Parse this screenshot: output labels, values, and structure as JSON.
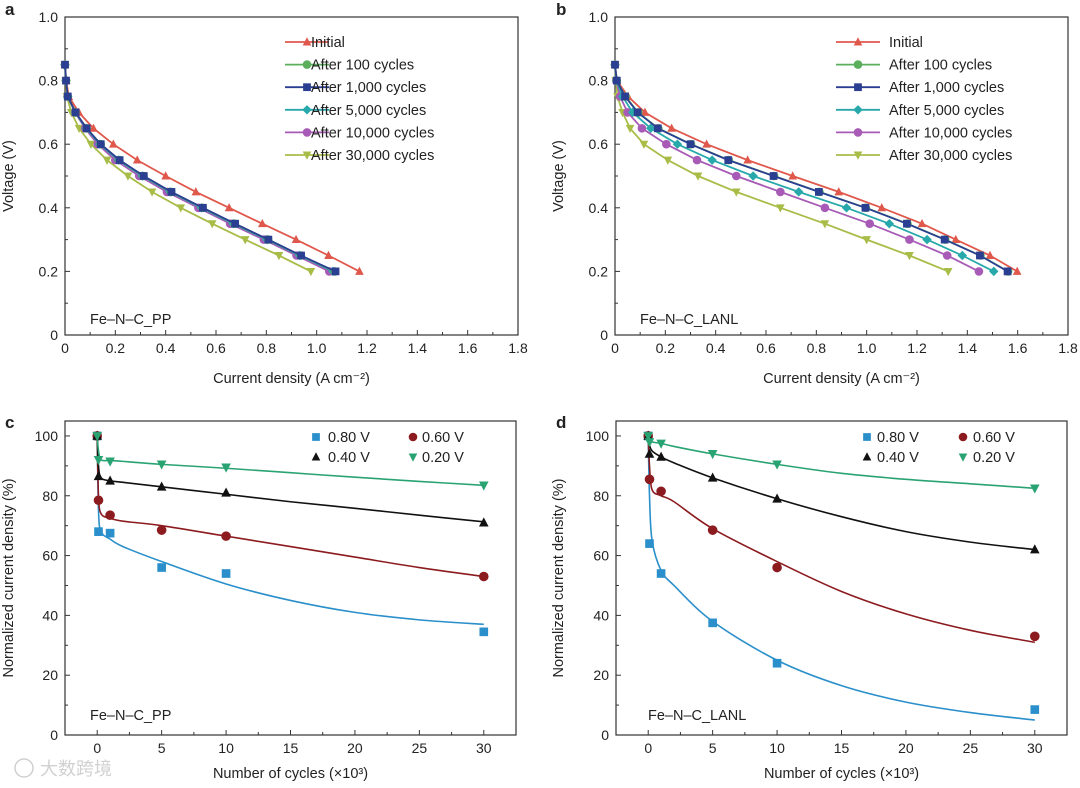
{
  "chart_data": [
    {
      "panel": "a",
      "type": "line",
      "title": "",
      "sample_label": "Fe–N–C_PP",
      "xlabel": "Current density (A cm⁻²)",
      "ylabel": "Voltage (V)",
      "xlim": [
        0,
        1.8
      ],
      "ylim": [
        0,
        1.0
      ],
      "xticks": [
        "0",
        "0.2",
        "0.4",
        "0.6",
        "0.8",
        "1.0",
        "1.2",
        "1.4",
        "1.6",
        "1.8"
      ],
      "yticks": [
        "0",
        "0.2",
        "0.4",
        "0.6",
        "0.8",
        "1.0"
      ],
      "legend_position": "top-right",
      "voltages": [
        0.85,
        0.8,
        0.75,
        0.7,
        0.65,
        0.6,
        0.55,
        0.5,
        0.45,
        0.4,
        0.35,
        0.3,
        0.25,
        0.2
      ],
      "series": [
        {
          "name": "Initial",
          "color": "#e0574b",
          "marker": "triangle-up",
          "current": [
            0,
            0.005,
            0.015,
            0.055,
            0.113,
            0.192,
            0.287,
            0.4,
            0.52,
            0.652,
            0.784,
            0.918,
            1.047,
            1.17
          ]
        },
        {
          "name": "After 100 cycles",
          "color": "#5aae5c",
          "marker": "circle",
          "current": [
            0,
            0.004,
            0.011,
            0.042,
            0.086,
            0.142,
            0.216,
            0.312,
            0.422,
            0.547,
            0.674,
            0.807,
            0.937,
            1.072
          ]
        },
        {
          "name": "After 1,000 cycles",
          "color": "#2b3f92",
          "marker": "square",
          "current": [
            0,
            0.004,
            0.011,
            0.042,
            0.086,
            0.142,
            0.217,
            0.313,
            0.423,
            0.548,
            0.676,
            0.808,
            0.938,
            1.075
          ]
        },
        {
          "name": "After 5,000 cycles",
          "color": "#27a9ab",
          "marker": "diamond",
          "current": [
            0,
            0.004,
            0.011,
            0.041,
            0.084,
            0.138,
            0.212,
            0.307,
            0.417,
            0.542,
            0.668,
            0.802,
            0.932,
            1.065
          ]
        },
        {
          "name": "After 10,000 cycles",
          "color": "#a75bb6",
          "marker": "circle",
          "current": [
            0,
            0.004,
            0.01,
            0.04,
            0.08,
            0.13,
            0.2,
            0.295,
            0.405,
            0.53,
            0.656,
            0.79,
            0.92,
            1.05
          ]
        },
        {
          "name": "After 30,000 cycles",
          "color": "#a8bd47",
          "marker": "triangle-down",
          "current": [
            0,
            0.003,
            0.008,
            0.025,
            0.056,
            0.103,
            0.167,
            0.25,
            0.346,
            0.46,
            0.585,
            0.716,
            0.85,
            0.977
          ]
        }
      ]
    },
    {
      "panel": "b",
      "type": "line",
      "title": "",
      "sample_label": "Fe–N–C_LANL",
      "xlabel": "Current density (A cm⁻²)",
      "ylabel": "Voltage (V)",
      "xlim": [
        0,
        1.8
      ],
      "ylim": [
        0,
        1.0
      ],
      "xticks": [
        "0",
        "0.2",
        "0.4",
        "0.6",
        "0.8",
        "1.0",
        "1.2",
        "1.4",
        "1.6",
        "1.8"
      ],
      "yticks": [
        "0",
        "0.2",
        "0.4",
        "0.6",
        "0.8",
        "1.0"
      ],
      "legend_position": "top-right",
      "voltages": [
        0.85,
        0.8,
        0.75,
        0.7,
        0.65,
        0.6,
        0.55,
        0.5,
        0.45,
        0.4,
        0.35,
        0.3,
        0.25,
        0.2
      ],
      "series": [
        {
          "name": "Initial",
          "color": "#e0574b",
          "marker": "triangle-up",
          "current": [
            0,
            0.008,
            0.052,
            0.119,
            0.225,
            0.364,
            0.527,
            0.706,
            0.889,
            1.06,
            1.22,
            1.354,
            1.49,
            1.598
          ]
        },
        {
          "name": "After 100 cycles",
          "color": "#5aae5c",
          "marker": "circle",
          "current": [
            0,
            0.007,
            0.042,
            0.092,
            0.172,
            0.302,
            0.452,
            0.632,
            0.812,
            0.997,
            1.162,
            1.312,
            1.452,
            1.562
          ]
        },
        {
          "name": "After 1,000 cycles",
          "color": "#2b3f92",
          "marker": "square",
          "current": [
            0,
            0.007,
            0.04,
            0.09,
            0.17,
            0.3,
            0.45,
            0.63,
            0.81,
            0.995,
            1.16,
            1.31,
            1.45,
            1.56
          ]
        },
        {
          "name": "After 5,000 cycles",
          "color": "#27a9ab",
          "marker": "diamond",
          "current": [
            0,
            0.006,
            0.03,
            0.07,
            0.142,
            0.248,
            0.386,
            0.549,
            0.73,
            0.92,
            1.09,
            1.24,
            1.38,
            1.505
          ]
        },
        {
          "name": "After 10,000 cycles",
          "color": "#a75bb6",
          "marker": "circle",
          "current": [
            0,
            0.005,
            0.02,
            0.05,
            0.107,
            0.204,
            0.326,
            0.482,
            0.657,
            0.834,
            1.012,
            1.17,
            1.32,
            1.446
          ]
        },
        {
          "name": "After 30,000 cycles",
          "color": "#a8bd47",
          "marker": "triangle-down",
          "current": [
            0,
            0.003,
            0.01,
            0.03,
            0.06,
            0.115,
            0.21,
            0.33,
            0.482,
            0.657,
            0.834,
            1.0,
            1.17,
            1.324
          ]
        }
      ]
    },
    {
      "panel": "c",
      "type": "scatter",
      "title": "",
      "sample_label": "Fe–N–C_PP",
      "xlabel": "Number of cycles (×10³)",
      "ylabel": "Normalized current density (%)",
      "xlim": [
        -2.5,
        32.5
      ],
      "ylim": [
        0,
        105
      ],
      "xticks": [
        "0",
        "5",
        "10",
        "15",
        "20",
        "25",
        "30"
      ],
      "yticks": [
        "0",
        "20",
        "40",
        "60",
        "80",
        "100"
      ],
      "legend_position": "top-right",
      "x": [
        0,
        0.1,
        1,
        5,
        10,
        30
      ],
      "fit_x": [
        0,
        0.1,
        0.3,
        1,
        2,
        5,
        10,
        15,
        20,
        25,
        30
      ],
      "series": [
        {
          "name": "0.80 V",
          "color": "#2a8fca",
          "marker": "square",
          "values": [
            100,
            68,
            67.5,
            56,
            54,
            34.5
          ],
          "fit": [
            100,
            75,
            68,
            65.5,
            63,
            58,
            50.5,
            45,
            41,
            38.5,
            37
          ]
        },
        {
          "name": "0.60 V",
          "color": "#8c1b1f",
          "marker": "circle",
          "values": [
            100,
            78.5,
            73.5,
            68.5,
            66.5,
            53
          ],
          "fit": [
            100,
            80,
            74,
            72.5,
            71.5,
            70,
            66.5,
            63,
            59.5,
            56,
            53
          ]
        },
        {
          "name": "0.40 V",
          "color": "#111111",
          "marker": "triangle-up",
          "values": [
            100,
            86.5,
            85,
            83,
            81,
            71
          ],
          "fit": [
            100,
            90,
            86,
            85,
            84.5,
            83,
            80.5,
            78,
            75.8,
            73.5,
            71.3
          ]
        },
        {
          "name": "0.20 V",
          "color": "#2aa373",
          "marker": "triangle-down",
          "values": [
            100,
            92,
            91.5,
            90.5,
            89.5,
            83.5
          ],
          "fit": [
            100,
            95,
            92,
            91.8,
            91.5,
            90.5,
            89.2,
            87.7,
            86.2,
            84.8,
            83.5
          ]
        }
      ]
    },
    {
      "panel": "d",
      "type": "scatter",
      "title": "",
      "sample_label": "Fe–N–C_LANL",
      "xlabel": "Number of cycles (×10³)",
      "ylabel": "Normalized current density (%)",
      "xlim": [
        -2.5,
        32.5
      ],
      "ylim": [
        0,
        105
      ],
      "xticks": [
        "0",
        "5",
        "10",
        "15",
        "20",
        "25",
        "30"
      ],
      "yticks": [
        "0",
        "20",
        "40",
        "60",
        "80",
        "100"
      ],
      "legend_position": "top-right",
      "x": [
        0,
        0.1,
        1,
        5,
        10,
        30
      ],
      "fit_x": [
        0,
        0.1,
        0.3,
        1,
        2,
        5,
        10,
        15,
        20,
        25,
        30
      ],
      "series": [
        {
          "name": "0.80 V",
          "color": "#2a8fca",
          "marker": "square",
          "values": [
            100,
            64,
            54,
            37.5,
            24,
            8.5
          ],
          "fit": [
            100,
            80,
            65,
            55,
            50,
            38,
            25,
            16.5,
            11,
            7.5,
            5
          ]
        },
        {
          "name": "0.60 V",
          "color": "#8c1b1f",
          "marker": "circle",
          "values": [
            100,
            85.5,
            81.5,
            68.5,
            56,
            33
          ],
          "fit": [
            100,
            90,
            82,
            80,
            78,
            69,
            58,
            48,
            40.5,
            35,
            31
          ]
        },
        {
          "name": "0.40 V",
          "color": "#111111",
          "marker": "triangle-up",
          "values": [
            100,
            94,
            93,
            86,
            79,
            62
          ],
          "fit": [
            100,
            97,
            95,
            93,
            91,
            86,
            79,
            73,
            68,
            64.5,
            62
          ]
        },
        {
          "name": "0.20 V",
          "color": "#2aa373",
          "marker": "triangle-down",
          "values": [
            100,
            98,
            97.5,
            94,
            90.5,
            82.5
          ],
          "fit": [
            100,
            99,
            98,
            97.5,
            96.5,
            94,
            90.5,
            87.5,
            85.5,
            84,
            82.5
          ]
        }
      ]
    }
  ],
  "watermark": "大数跨境"
}
